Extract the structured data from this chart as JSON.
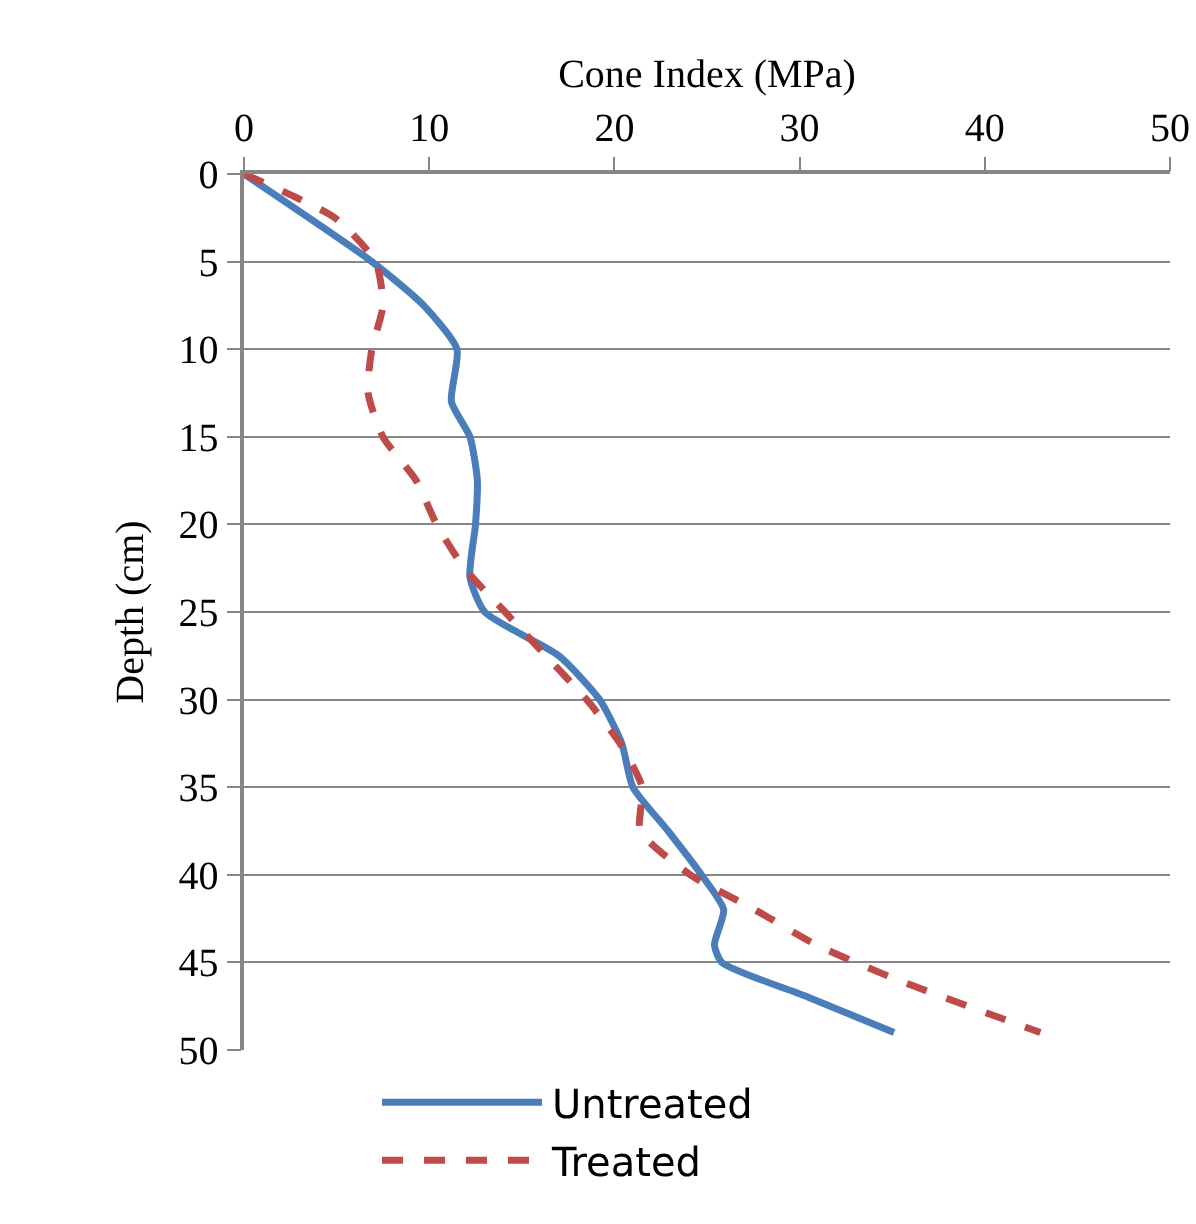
{
  "chart_data": {
    "type": "line",
    "orientation": "horizontal",
    "xlabel": "Cone Index (MPa)",
    "ylabel": "Depth (cm)",
    "xlim": [
      0,
      50
    ],
    "xticks": [
      0,
      10,
      20,
      30,
      40,
      50
    ],
    "ylim": [
      50,
      0
    ],
    "yticks": [
      0,
      5,
      10,
      15,
      20,
      25,
      30,
      35,
      40,
      45,
      50
    ],
    "grid": "y",
    "legend": "bottom",
    "marker": "none",
    "series": [
      {
        "name": "Untreated",
        "color": "#4a7ebb",
        "line_style": "solid",
        "x": [
          0,
          5,
          7.5,
          10,
          13,
          15,
          17.5,
          20,
          23,
          25,
          27.5,
          30,
          32.5,
          35,
          37.5,
          40,
          42,
          44,
          45,
          47,
          49
        ],
        "values": [
          0,
          6.9,
          9.7,
          11.5,
          11.2,
          12.2,
          12.6,
          12.5,
          12.2,
          13.0,
          17.0,
          19.2,
          20.4,
          21.0,
          22.9,
          24.7,
          25.9,
          25.4,
          25.8,
          30.5,
          35.1
        ]
      },
      {
        "name": "Treated",
        "color": "#be4b48",
        "line_style": "dashed",
        "x": [
          0,
          2.5,
          5,
          7.5,
          10,
          12.5,
          15,
          17.5,
          20,
          22.5,
          25,
          27.5,
          30,
          32.5,
          35,
          37.5,
          40,
          42,
          44,
          46,
          49
        ],
        "values": [
          0,
          4.9,
          7.1,
          7.5,
          6.9,
          6.7,
          7.5,
          9.3,
          10.4,
          11.9,
          14.1,
          16.3,
          18.5,
          20.3,
          21.5,
          21.4,
          24.1,
          27.6,
          30.9,
          35.3,
          43.0
        ]
      }
    ]
  }
}
